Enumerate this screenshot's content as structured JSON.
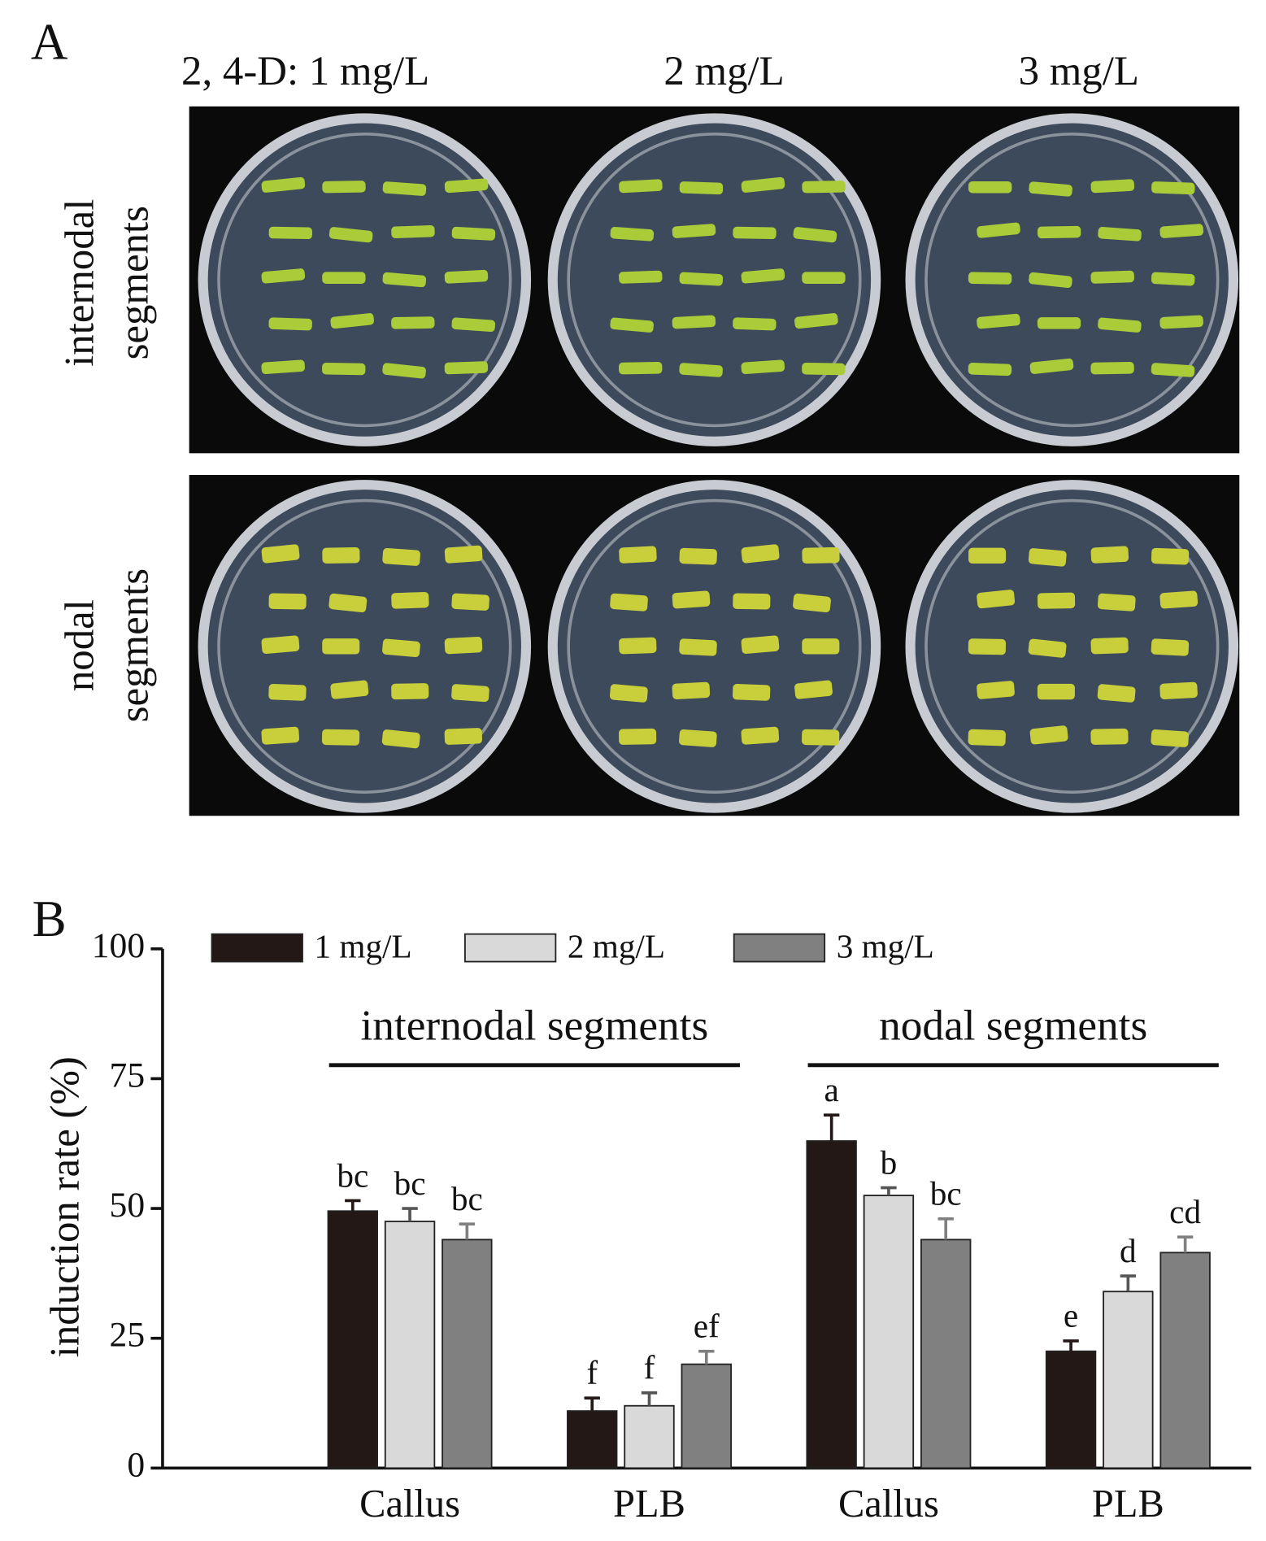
{
  "panel_a": {
    "label": "A",
    "column_labels": [
      "2, 4-D: 1 mg/L",
      "2 mg/L",
      "3 mg/L"
    ],
    "row_labels": [
      [
        "internodal",
        "segments"
      ],
      [
        "nodal",
        "segments"
      ]
    ]
  },
  "chart_data": {
    "type": "bar",
    "panel_label": "B",
    "ylabel": "induction rate (%)",
    "categories": [
      "Callus",
      "PLB",
      "Callus",
      "PLB"
    ],
    "groups": [
      {
        "label": "internodal segments",
        "categories": [
          0,
          1
        ]
      },
      {
        "label": "nodal segments",
        "categories": [
          2,
          3
        ]
      }
    ],
    "series": [
      {
        "name": "1 mg/L",
        "color": "#231815",
        "values": [
          49.5,
          11,
          63,
          22.5
        ],
        "errors": [
          2,
          2.5,
          5,
          2
        ],
        "letters": [
          "bc",
          "f",
          "a",
          "e"
        ]
      },
      {
        "name": "2 mg/L",
        "color": "#d9d9d9",
        "values": [
          47.5,
          12,
          52.5,
          34
        ],
        "errors": [
          2.5,
          2.5,
          1.5,
          3
        ],
        "letters": [
          "bc",
          "f",
          "b",
          "d"
        ]
      },
      {
        "name": "3 mg/L",
        "color": "#808080",
        "values": [
          44,
          20,
          44,
          41.5
        ],
        "errors": [
          3,
          2.5,
          4,
          3
        ],
        "letters": [
          "bc",
          "ef",
          "bc",
          "cd"
        ]
      }
    ],
    "ylim": [
      0,
      100
    ],
    "yticks": [
      0,
      25,
      50,
      75,
      100
    ]
  }
}
